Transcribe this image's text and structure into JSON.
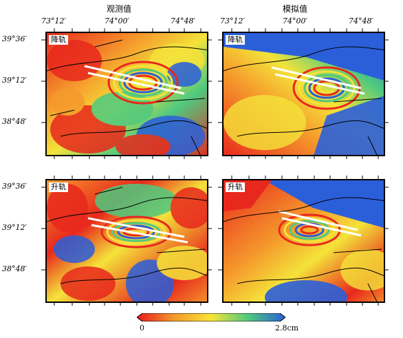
{
  "columns": {
    "observed": "观测值",
    "simulated": "模拟值"
  },
  "longitude_ticks": [
    "73°12′",
    "74°00′",
    "74°48′"
  ],
  "latitude_ticks": [
    "39°36′",
    "39°12′",
    "38°48′"
  ],
  "tracks": {
    "descending": "降轨",
    "ascending": "升轨"
  },
  "colorbar": {
    "min_label": "0",
    "max_label": "2.8cm",
    "colors": [
      "#e8191d",
      "#f39a2a",
      "#f7e436",
      "#4fc97f",
      "#2b5fd9"
    ]
  }
}
